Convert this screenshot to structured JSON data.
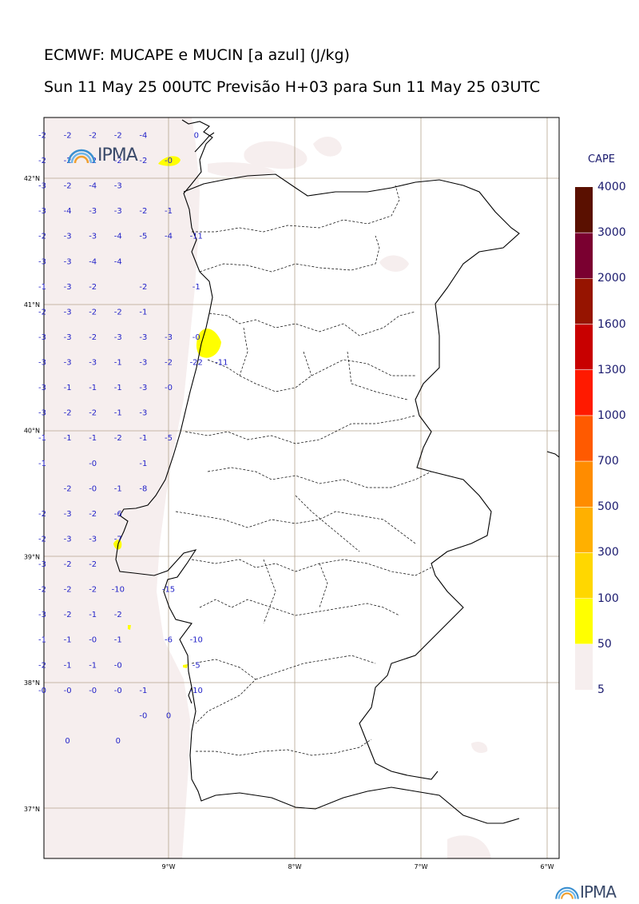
{
  "header": {
    "title": "ECMWF: MUCAPE e MUCIN [a azul] (J/kg)",
    "subtitle": "Sun 11 May 25 00UTC Previsão H+03 para Sun 11 May 25 03UTC"
  },
  "map": {
    "region": "Portugal",
    "lat_labels": [
      "42°N",
      "41°N",
      "40°N",
      "39°N",
      "38°N",
      "37°N"
    ],
    "lon_labels": [
      "9°W",
      "8°W",
      "7°W",
      "6°W"
    ],
    "gridlines": true
  },
  "colorbar": {
    "title": "CAPE",
    "levels": [
      5,
      50,
      100,
      300,
      500,
      700,
      1000,
      1300,
      1600,
      2000,
      3000,
      4000
    ],
    "level_labels": [
      "4000",
      "3000",
      "2000",
      "1600",
      "1300",
      "1000",
      "700",
      "500",
      "300",
      "100",
      "50",
      "5"
    ],
    "colors": [
      "#f6eeee",
      "#ffff00",
      "#ffd700",
      "#ffb000",
      "#ff8c00",
      "#ff5a00",
      "#ff1a00",
      "#c80000",
      "#961400",
      "#7a0030",
      "#5a1000"
    ]
  },
  "logos": {
    "top_logo": "IPMA",
    "bottom_logo": "IPMA"
  },
  "mucin_values": [
    {
      "lat": 42.32,
      "lon": -10.0,
      "v": "-2"
    },
    {
      "lat": 42.32,
      "lon": -9.8,
      "v": "-2"
    },
    {
      "lat": 42.32,
      "lon": -9.6,
      "v": "-2"
    },
    {
      "lat": 42.32,
      "lon": -9.4,
      "v": "-2"
    },
    {
      "lat": 42.32,
      "lon": -9.2,
      "v": "-4"
    },
    {
      "lat": 42.32,
      "lon": -8.78,
      "v": "0"
    },
    {
      "lat": 42.12,
      "lon": -10.0,
      "v": "-2"
    },
    {
      "lat": 42.12,
      "lon": -9.8,
      "v": "-2"
    },
    {
      "lat": 42.12,
      "lon": -9.6,
      "v": "-2"
    },
    {
      "lat": 42.12,
      "lon": -9.4,
      "v": "-2"
    },
    {
      "lat": 42.12,
      "lon": -9.2,
      "v": "-2"
    },
    {
      "lat": 42.12,
      "lon": -9.0,
      "v": "-0"
    },
    {
      "lat": 41.92,
      "lon": -10.0,
      "v": "-3"
    },
    {
      "lat": 41.92,
      "lon": -9.8,
      "v": "-2"
    },
    {
      "lat": 41.92,
      "lon": -9.6,
      "v": "-4"
    },
    {
      "lat": 41.92,
      "lon": -9.4,
      "v": "-3"
    },
    {
      "lat": 41.72,
      "lon": -10.0,
      "v": "-3"
    },
    {
      "lat": 41.72,
      "lon": -9.8,
      "v": "-4"
    },
    {
      "lat": 41.72,
      "lon": -9.6,
      "v": "-3"
    },
    {
      "lat": 41.72,
      "lon": -9.4,
      "v": "-3"
    },
    {
      "lat": 41.72,
      "lon": -9.2,
      "v": "-2"
    },
    {
      "lat": 41.72,
      "lon": -9.0,
      "v": "-1"
    },
    {
      "lat": 41.52,
      "lon": -10.0,
      "v": "-2"
    },
    {
      "lat": 41.52,
      "lon": -9.8,
      "v": "-3"
    },
    {
      "lat": 41.52,
      "lon": -9.6,
      "v": "-3"
    },
    {
      "lat": 41.52,
      "lon": -9.4,
      "v": "-4"
    },
    {
      "lat": 41.52,
      "lon": -9.2,
      "v": "-5"
    },
    {
      "lat": 41.52,
      "lon": -9.0,
      "v": "-4"
    },
    {
      "lat": 41.52,
      "lon": -8.78,
      "v": "-11"
    },
    {
      "lat": 41.32,
      "lon": -10.0,
      "v": "-3"
    },
    {
      "lat": 41.32,
      "lon": -9.8,
      "v": "-3"
    },
    {
      "lat": 41.32,
      "lon": -9.6,
      "v": "-4"
    },
    {
      "lat": 41.32,
      "lon": -9.4,
      "v": "-4"
    },
    {
      "lat": 41.12,
      "lon": -10.0,
      "v": "-1"
    },
    {
      "lat": 41.12,
      "lon": -9.8,
      "v": "-3"
    },
    {
      "lat": 41.12,
      "lon": -9.6,
      "v": "-2"
    },
    {
      "lat": 41.12,
      "lon": -9.2,
      "v": "-2"
    },
    {
      "lat": 41.12,
      "lon": -8.78,
      "v": "-1"
    },
    {
      "lat": 40.92,
      "lon": -10.0,
      "v": "-2"
    },
    {
      "lat": 40.92,
      "lon": -9.8,
      "v": "-3"
    },
    {
      "lat": 40.92,
      "lon": -9.6,
      "v": "-2"
    },
    {
      "lat": 40.92,
      "lon": -9.4,
      "v": "-2"
    },
    {
      "lat": 40.92,
      "lon": -9.2,
      "v": "-1"
    },
    {
      "lat": 40.72,
      "lon": -10.0,
      "v": "-3"
    },
    {
      "lat": 40.72,
      "lon": -9.8,
      "v": "-3"
    },
    {
      "lat": 40.72,
      "lon": -9.6,
      "v": "-2"
    },
    {
      "lat": 40.72,
      "lon": -9.4,
      "v": "-3"
    },
    {
      "lat": 40.72,
      "lon": -9.2,
      "v": "-3"
    },
    {
      "lat": 40.72,
      "lon": -9.0,
      "v": "-3"
    },
    {
      "lat": 40.72,
      "lon": -8.78,
      "v": "-0"
    },
    {
      "lat": 40.52,
      "lon": -10.0,
      "v": "-3"
    },
    {
      "lat": 40.52,
      "lon": -9.8,
      "v": "-3"
    },
    {
      "lat": 40.52,
      "lon": -9.6,
      "v": "-3"
    },
    {
      "lat": 40.52,
      "lon": -9.4,
      "v": "-1"
    },
    {
      "lat": 40.52,
      "lon": -9.2,
      "v": "-3"
    },
    {
      "lat": 40.52,
      "lon": -9.0,
      "v": "-2"
    },
    {
      "lat": 40.52,
      "lon": -8.78,
      "v": "-22"
    },
    {
      "lat": 40.52,
      "lon": -8.58,
      "v": "-11"
    },
    {
      "lat": 40.32,
      "lon": -10.0,
      "v": "-3"
    },
    {
      "lat": 40.32,
      "lon": -9.8,
      "v": "-1"
    },
    {
      "lat": 40.32,
      "lon": -9.6,
      "v": "-1"
    },
    {
      "lat": 40.32,
      "lon": -9.4,
      "v": "-1"
    },
    {
      "lat": 40.32,
      "lon": -9.2,
      "v": "-3"
    },
    {
      "lat": 40.32,
      "lon": -9.0,
      "v": "-0"
    },
    {
      "lat": 40.12,
      "lon": -10.0,
      "v": "-3"
    },
    {
      "lat": 40.12,
      "lon": -9.8,
      "v": "-2"
    },
    {
      "lat": 40.12,
      "lon": -9.6,
      "v": "-2"
    },
    {
      "lat": 40.12,
      "lon": -9.4,
      "v": "-1"
    },
    {
      "lat": 40.12,
      "lon": -9.2,
      "v": "-3"
    },
    {
      "lat": 39.92,
      "lon": -10.0,
      "v": "-1"
    },
    {
      "lat": 39.92,
      "lon": -9.8,
      "v": "-1"
    },
    {
      "lat": 39.92,
      "lon": -9.6,
      "v": "-1"
    },
    {
      "lat": 39.92,
      "lon": -9.4,
      "v": "-2"
    },
    {
      "lat": 39.92,
      "lon": -9.2,
      "v": "-1"
    },
    {
      "lat": 39.92,
      "lon": -9.0,
      "v": "-5"
    },
    {
      "lat": 39.72,
      "lon": -10.0,
      "v": "-1"
    },
    {
      "lat": 39.72,
      "lon": -9.6,
      "v": "-0"
    },
    {
      "lat": 39.72,
      "lon": -9.2,
      "v": "-1"
    },
    {
      "lat": 39.52,
      "lon": -9.8,
      "v": "-2"
    },
    {
      "lat": 39.52,
      "lon": -9.6,
      "v": "-0"
    },
    {
      "lat": 39.52,
      "lon": -9.4,
      "v": "-1"
    },
    {
      "lat": 39.52,
      "lon": -9.2,
      "v": "-8"
    },
    {
      "lat": 39.32,
      "lon": -10.0,
      "v": "-2"
    },
    {
      "lat": 39.32,
      "lon": -9.8,
      "v": "-3"
    },
    {
      "lat": 39.32,
      "lon": -9.6,
      "v": "-2"
    },
    {
      "lat": 39.32,
      "lon": -9.4,
      "v": "-6"
    },
    {
      "lat": 39.12,
      "lon": -10.0,
      "v": "-2"
    },
    {
      "lat": 39.12,
      "lon": -9.8,
      "v": "-3"
    },
    {
      "lat": 39.12,
      "lon": -9.6,
      "v": "-3"
    },
    {
      "lat": 39.12,
      "lon": -9.4,
      "v": "-7"
    },
    {
      "lat": 38.92,
      "lon": -10.0,
      "v": "-3"
    },
    {
      "lat": 38.92,
      "lon": -9.8,
      "v": "-2"
    },
    {
      "lat": 38.92,
      "lon": -9.6,
      "v": "-2"
    },
    {
      "lat": 38.72,
      "lon": -10.0,
      "v": "-2"
    },
    {
      "lat": 38.72,
      "lon": -9.8,
      "v": "-2"
    },
    {
      "lat": 38.72,
      "lon": -9.6,
      "v": "-2"
    },
    {
      "lat": 38.72,
      "lon": -9.4,
      "v": "-10"
    },
    {
      "lat": 38.72,
      "lon": -9.0,
      "v": "-15"
    },
    {
      "lat": 38.52,
      "lon": -10.0,
      "v": "-3"
    },
    {
      "lat": 38.52,
      "lon": -9.8,
      "v": "-2"
    },
    {
      "lat": 38.52,
      "lon": -9.6,
      "v": "-1"
    },
    {
      "lat": 38.52,
      "lon": -9.4,
      "v": "-2"
    },
    {
      "lat": 38.32,
      "lon": -10.0,
      "v": "-1"
    },
    {
      "lat": 38.32,
      "lon": -9.8,
      "v": "-1"
    },
    {
      "lat": 38.32,
      "lon": -9.6,
      "v": "-0"
    },
    {
      "lat": 38.32,
      "lon": -9.4,
      "v": "-1"
    },
    {
      "lat": 38.32,
      "lon": -9.0,
      "v": "-6"
    },
    {
      "lat": 38.32,
      "lon": -8.78,
      "v": "-10"
    },
    {
      "lat": 38.12,
      "lon": -10.0,
      "v": "-2"
    },
    {
      "lat": 38.12,
      "lon": -9.8,
      "v": "-1"
    },
    {
      "lat": 38.12,
      "lon": -9.6,
      "v": "-1"
    },
    {
      "lat": 38.12,
      "lon": -9.4,
      "v": "-0"
    },
    {
      "lat": 38.12,
      "lon": -8.78,
      "v": "-5"
    },
    {
      "lat": 37.92,
      "lon": -10.0,
      "v": "-0"
    },
    {
      "lat": 37.92,
      "lon": -9.8,
      "v": "-0"
    },
    {
      "lat": 37.92,
      "lon": -9.6,
      "v": "-0"
    },
    {
      "lat": 37.92,
      "lon": -9.4,
      "v": "-0"
    },
    {
      "lat": 37.92,
      "lon": -9.2,
      "v": "-1"
    },
    {
      "lat": 37.92,
      "lon": -8.78,
      "v": "-10"
    },
    {
      "lat": 37.72,
      "lon": -9.2,
      "v": "-0"
    },
    {
      "lat": 37.72,
      "lon": -9.0,
      "v": "0"
    },
    {
      "lat": 37.52,
      "lon": -9.8,
      "v": "0"
    },
    {
      "lat": 37.52,
      "lon": -9.4,
      "v": "0"
    }
  ]
}
